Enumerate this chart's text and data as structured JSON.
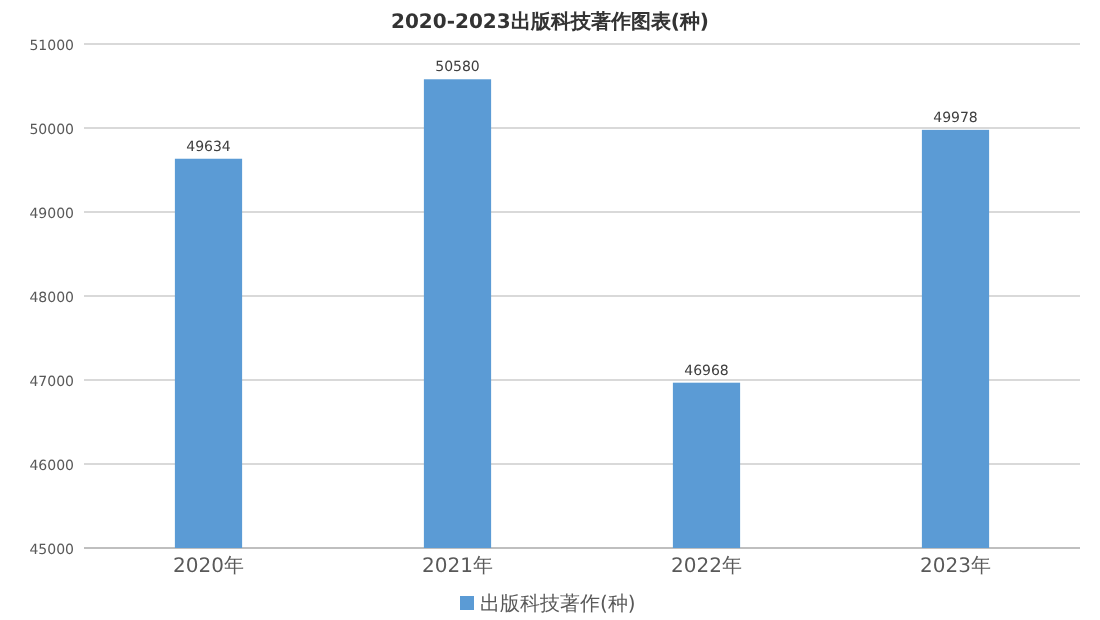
{
  "chart_data": {
    "type": "bar",
    "title": "2020-2023出版科技著作图表(种)",
    "categories": [
      "2020年",
      "2021年",
      "2022年",
      "2023年"
    ],
    "series": [
      {
        "name": "出版科技著作(种)",
        "color": "#5b9bd5",
        "values": [
          49634,
          50580,
          46968,
          49978
        ]
      }
    ],
    "ylim": [
      45000,
      51000
    ],
    "yticks": [
      45000,
      46000,
      47000,
      48000,
      49000,
      50000,
      51000
    ],
    "grid": "y",
    "legend": "bottom",
    "data_labels": true
  }
}
